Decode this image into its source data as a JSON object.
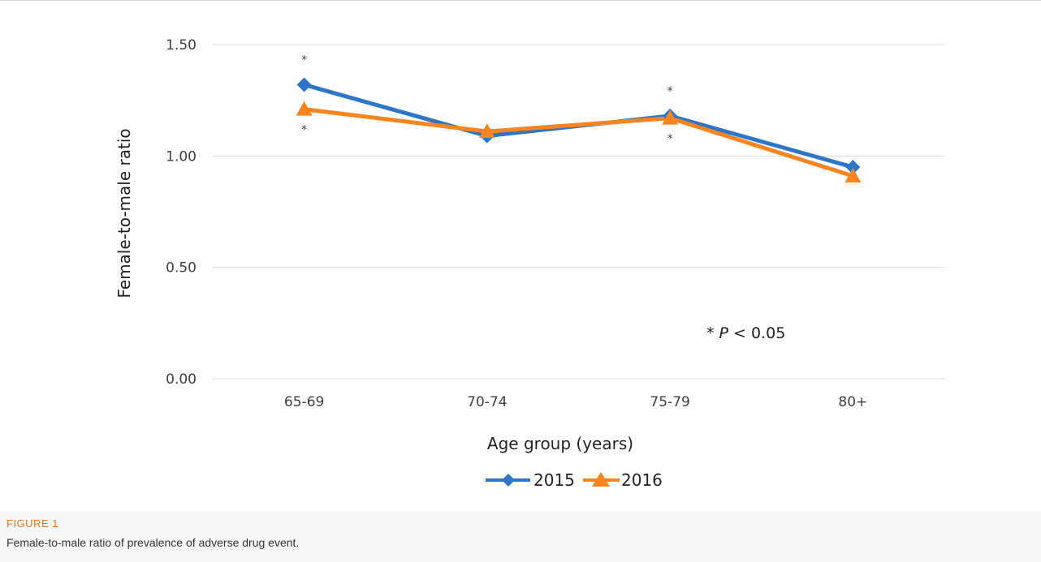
{
  "figure": {
    "label": "FIGURE 1",
    "caption": "Female-to-male ratio of prevalence of adverse drug event."
  },
  "chart_data": {
    "type": "line",
    "title": "",
    "xlabel": "Age group (years)",
    "ylabel": "Female-to-male ratio",
    "categories": [
      "65-69",
      "70-74",
      "75-79",
      "80+"
    ],
    "ylim": [
      0,
      1.5
    ],
    "yticks": [
      "0.00",
      "0.50",
      "1.00",
      "1.50"
    ],
    "grid": true,
    "legend_position": "bottom",
    "series": [
      {
        "name": "2015",
        "values": [
          1.32,
          1.09,
          1.18,
          0.95
        ],
        "color": "#2e75c8",
        "marker": "diamond"
      },
      {
        "name": "2016",
        "values": [
          1.21,
          1.11,
          1.17,
          0.91
        ],
        "color": "#f7841f",
        "marker": "triangle"
      }
    ],
    "significance_markers": [
      {
        "category": "65-69",
        "series": "2015",
        "position": "above",
        "text": "*"
      },
      {
        "category": "65-69",
        "series": "2016",
        "position": "below",
        "text": "*"
      },
      {
        "category": "75-79",
        "series": "2015",
        "position": "above",
        "text": "*"
      },
      {
        "category": "75-79",
        "series": "2016",
        "position": "below",
        "text": "*"
      }
    ],
    "annotation": {
      "star": "*",
      "symbol": "P",
      "rest": " < 0.05"
    }
  }
}
